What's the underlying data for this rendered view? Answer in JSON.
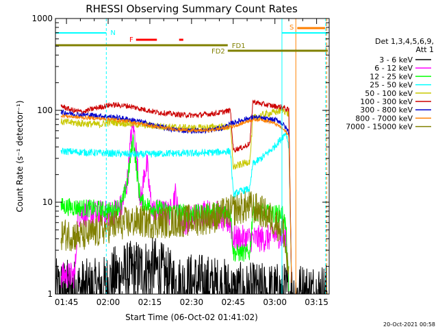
{
  "chart_data": {
    "type": "line",
    "title": "RHESSI Observing Summary Count Rates",
    "xlabel": "Start Time (06-Oct-02 01:41:02)",
    "ylabel": "Count Rate (s⁻¹ detector⁻¹)",
    "x_unit": "minutes since start time (01:41:02)",
    "xlim": [
      0,
      98.5
    ],
    "ylim": [
      1,
      1000
    ],
    "y_scale": "log",
    "x_ticks": [
      {
        "t": 3.97,
        "label": "01:45"
      },
      {
        "t": 18.97,
        "label": "02:00"
      },
      {
        "t": 33.97,
        "label": "02:15"
      },
      {
        "t": 48.97,
        "label": "02:30"
      },
      {
        "t": 63.97,
        "label": "02:45"
      },
      {
        "t": 78.97,
        "label": "03:00"
      },
      {
        "t": 93.97,
        "label": "03:15"
      }
    ],
    "y_ticks": [
      {
        "v": 1,
        "label": "1"
      },
      {
        "v": 10,
        "label": "10"
      },
      {
        "v": 100,
        "label": "100"
      },
      {
        "v": 1000,
        "label": "1000"
      }
    ],
    "legend": {
      "header": [
        "Det 1,3,4,5,6,9,",
        "Att 1"
      ],
      "position": "right"
    },
    "series": [
      {
        "name": "3 - 6 keV",
        "color": "#000000",
        "noise": 0.35,
        "points": [
          [
            0,
            1.1
          ],
          [
            14,
            1.1
          ],
          [
            18,
            1.2
          ],
          [
            22,
            1.6
          ],
          [
            30,
            1.8
          ],
          [
            36,
            1.9
          ],
          [
            40,
            1.5
          ],
          [
            44,
            1.2
          ],
          [
            50,
            1.3
          ],
          [
            56,
            1.2
          ],
          [
            62,
            1.1
          ],
          [
            64,
            1.0
          ],
          [
            98,
            1.0
          ]
        ]
      },
      {
        "name": "6 - 12 keV",
        "color": "#ff00ff",
        "noise": 0.15,
        "points": [
          [
            2,
            1.6
          ],
          [
            7,
            1.6
          ],
          [
            8,
            7.5
          ],
          [
            14,
            7.5
          ],
          [
            20,
            7.5
          ],
          [
            24,
            9
          ],
          [
            26,
            18
          ],
          [
            27,
            45
          ],
          [
            28,
            70
          ],
          [
            29,
            40
          ],
          [
            30,
            15
          ],
          [
            31,
            10
          ],
          [
            32,
            22
          ],
          [
            33,
            25
          ],
          [
            34,
            12
          ],
          [
            35,
            8
          ],
          [
            40,
            7.5
          ],
          [
            42,
            8
          ],
          [
            43,
            13
          ],
          [
            44,
            8
          ],
          [
            46,
            6
          ],
          [
            50,
            7
          ],
          [
            54,
            8
          ],
          [
            57,
            7
          ],
          [
            58,
            7.5
          ],
          [
            60,
            6.5
          ],
          [
            63,
            6
          ],
          [
            64,
            4
          ],
          [
            73,
            4
          ],
          [
            76,
            4
          ],
          [
            80,
            4.5
          ],
          [
            83,
            4
          ],
          [
            84,
            1.5
          ]
        ]
      },
      {
        "name": "12 - 25 keV",
        "color": "#00ff00",
        "noise": 0.1,
        "points": [
          [
            2,
            9
          ],
          [
            14,
            8.5
          ],
          [
            20,
            8
          ],
          [
            24,
            9.5
          ],
          [
            26,
            18
          ],
          [
            27,
            30
          ],
          [
            28,
            50
          ],
          [
            29,
            26
          ],
          [
            30,
            14
          ],
          [
            31,
            10
          ],
          [
            34,
            9
          ],
          [
            40,
            8
          ],
          [
            50,
            7.5
          ],
          [
            58,
            8
          ],
          [
            63,
            8
          ],
          [
            64,
            2.8
          ],
          [
            70,
            2.8
          ],
          [
            71,
            8
          ],
          [
            78,
            7.5
          ],
          [
            82,
            7.5
          ],
          [
            83,
            5
          ],
          [
            84,
            1
          ]
        ]
      },
      {
        "name": "25 - 50 keV",
        "color": "#00ffff",
        "noise": 0.04,
        "points": [
          [
            2,
            36
          ],
          [
            10,
            35
          ],
          [
            20,
            34
          ],
          [
            30,
            33
          ],
          [
            40,
            34
          ],
          [
            50,
            34
          ],
          [
            58,
            35
          ],
          [
            63,
            36
          ],
          [
            64,
            12
          ],
          [
            66,
            13
          ],
          [
            70,
            14
          ],
          [
            71,
            26
          ],
          [
            74,
            30
          ],
          [
            78,
            38
          ],
          [
            81,
            48
          ],
          [
            83,
            58
          ],
          [
            84,
            40
          ],
          [
            85,
            1
          ]
        ]
      },
      {
        "name": "50 - 100 keV",
        "color": "#c8c800",
        "noise": 0.04,
        "points": [
          [
            2,
            75
          ],
          [
            10,
            72
          ],
          [
            16,
            70
          ],
          [
            20,
            75
          ],
          [
            30,
            70
          ],
          [
            40,
            66
          ],
          [
            50,
            64
          ],
          [
            58,
            66
          ],
          [
            63,
            66
          ],
          [
            64,
            24
          ],
          [
            70,
            28
          ],
          [
            71,
            82
          ],
          [
            75,
            90
          ],
          [
            80,
            97
          ],
          [
            82,
            102
          ],
          [
            84,
            90
          ],
          [
            85,
            1
          ]
        ]
      },
      {
        "name": "100 - 300 keV",
        "color": "#cc0000",
        "noise": 0.03,
        "points": [
          [
            2,
            112
          ],
          [
            6,
            100
          ],
          [
            10,
            96
          ],
          [
            14,
            105
          ],
          [
            20,
            115
          ],
          [
            26,
            112
          ],
          [
            30,
            105
          ],
          [
            36,
            96
          ],
          [
            44,
            90
          ],
          [
            50,
            88
          ],
          [
            58,
            93
          ],
          [
            63,
            100
          ],
          [
            64,
            37
          ],
          [
            68,
            40
          ],
          [
            70,
            44
          ],
          [
            71,
            125
          ],
          [
            74,
            118
          ],
          [
            78,
            112
          ],
          [
            82,
            108
          ],
          [
            84,
            100
          ],
          [
            85,
            1
          ]
        ]
      },
      {
        "name": "300 - 800 keV",
        "color": "#0000cc",
        "noise": 0.03,
        "points": [
          [
            2,
            96
          ],
          [
            8,
            90
          ],
          [
            14,
            88
          ],
          [
            20,
            85
          ],
          [
            24,
            82
          ],
          [
            30,
            76
          ],
          [
            36,
            68
          ],
          [
            42,
            62
          ],
          [
            48,
            60
          ],
          [
            54,
            60
          ],
          [
            60,
            64
          ],
          [
            64,
            73
          ],
          [
            68,
            80
          ],
          [
            72,
            84
          ],
          [
            76,
            80
          ],
          [
            80,
            78
          ],
          [
            82,
            70
          ],
          [
            84,
            58
          ],
          [
            85,
            1
          ]
        ]
      },
      {
        "name": "800 - 7000 keV",
        "color": "#ff8000",
        "noise": 0.02,
        "points": [
          [
            2,
            88
          ],
          [
            8,
            84
          ],
          [
            14,
            82
          ],
          [
            20,
            80
          ],
          [
            26,
            76
          ],
          [
            32,
            70
          ],
          [
            38,
            65
          ],
          [
            44,
            62
          ],
          [
            50,
            60
          ],
          [
            56,
            61
          ],
          [
            62,
            65
          ],
          [
            66,
            70
          ],
          [
            70,
            78
          ],
          [
            74,
            80
          ],
          [
            78,
            74
          ],
          [
            81,
            66
          ],
          [
            83,
            58
          ],
          [
            84,
            52
          ],
          [
            85,
            1
          ]
        ]
      },
      {
        "name": "7000 - 15000 keV",
        "color": "#808000",
        "noise": 0.18,
        "points": [
          [
            2,
            4.5
          ],
          [
            10,
            4.3
          ],
          [
            14,
            4.6
          ],
          [
            20,
            5.5
          ],
          [
            26,
            6
          ],
          [
            30,
            6.2
          ],
          [
            36,
            6
          ],
          [
            44,
            6.2
          ],
          [
            52,
            6.5
          ],
          [
            58,
            7
          ],
          [
            63,
            8
          ],
          [
            66,
            8.5
          ],
          [
            70,
            9
          ],
          [
            74,
            8
          ],
          [
            78,
            6.5
          ],
          [
            82,
            5
          ],
          [
            84,
            1.5
          ]
        ]
      }
    ],
    "annotations": {
      "night_label": "N",
      "flare_label": "F",
      "saa_label": "S",
      "fd1_label": "FD1",
      "fd2_label": "FD2",
      "night": [
        {
          "start": 0,
          "end": 18.3
        },
        {
          "start": 81.5,
          "end": 98
        }
      ],
      "flare": [
        {
          "start": 29,
          "end": 36.5
        },
        {
          "start": 44.5,
          "end": 46
        }
      ],
      "saa": [
        {
          "start": 87,
          "end": 97
        }
      ],
      "fd1": [
        {
          "start": 0,
          "end": 62
        }
      ],
      "fd2": [
        {
          "start": 62,
          "end": 98
        }
      ]
    },
    "vlines": [
      {
        "t": 18.3,
        "color": "#00ffff",
        "dashed": true
      },
      {
        "t": 81.5,
        "color": "#00ffff",
        "dashed": false
      },
      {
        "t": 86.5,
        "color": "#ff8000",
        "dashed": false
      },
      {
        "t": 97.2,
        "color": "#00ffff",
        "dashed": true
      },
      {
        "t": 97.6,
        "color": "#ff8000",
        "dashed": true
      }
    ],
    "timestamp": "20-Oct-2021 00:58"
  }
}
